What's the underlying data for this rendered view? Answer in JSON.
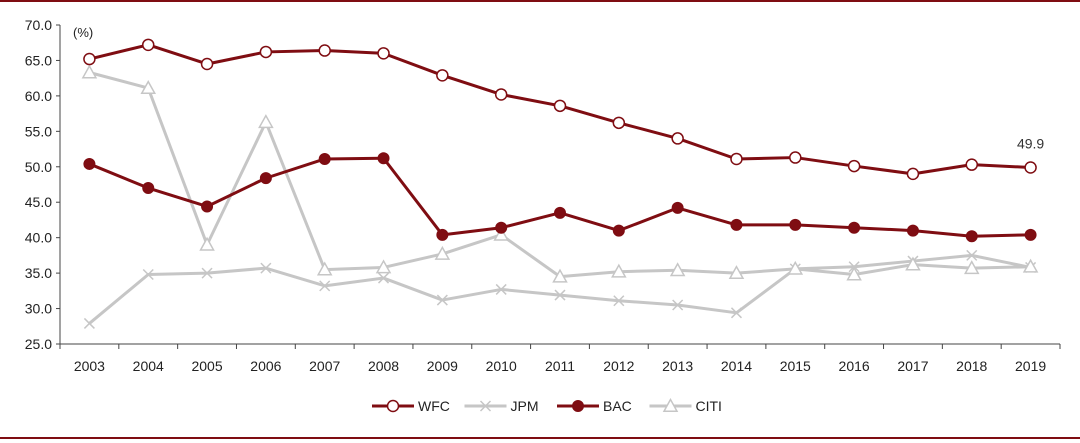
{
  "chart_data": {
    "type": "line",
    "unit_label": "(%)",
    "x": [
      "2003",
      "2004",
      "2005",
      "2006",
      "2007",
      "2008",
      "2009",
      "2010",
      "2011",
      "2012",
      "2013",
      "2014",
      "2015",
      "2016",
      "2017",
      "2018",
      "2019"
    ],
    "ylim": [
      25.0,
      70.0
    ],
    "yticks": [
      "70.0",
      "65.0",
      "60.0",
      "55.0",
      "50.0",
      "45.0",
      "40.0",
      "35.0",
      "30.0",
      "25.0"
    ],
    "grid": false,
    "legend_position": "bottom",
    "series": [
      {
        "name": "WFC",
        "color": "#7f0d12",
        "marker": "open-circle",
        "values": [
          65.2,
          67.2,
          64.5,
          66.2,
          66.4,
          66.0,
          62.9,
          60.2,
          58.6,
          56.2,
          54.0,
          51.1,
          51.3,
          50.1,
          49.0,
          50.3,
          49.9
        ]
      },
      {
        "name": "JPM",
        "color": "#c6c6c6",
        "marker": "x",
        "values": [
          27.9,
          34.8,
          35.0,
          35.7,
          33.2,
          34.3,
          31.2,
          32.7,
          31.9,
          31.1,
          30.5,
          29.4,
          35.6,
          35.9,
          36.7,
          37.5,
          35.8
        ]
      },
      {
        "name": "BAC",
        "color": "#7f0d12",
        "marker": "filled-circle",
        "values": [
          50.4,
          47.0,
          44.4,
          48.4,
          51.1,
          51.2,
          40.4,
          41.4,
          43.5,
          41.0,
          44.2,
          41.8,
          41.8,
          41.4,
          41.0,
          40.2,
          40.4
        ]
      },
      {
        "name": "CITI",
        "color": "#c6c6c6",
        "marker": "open-triangle",
        "values": [
          63.3,
          61.1,
          39.0,
          56.3,
          35.5,
          35.8,
          37.7,
          40.4,
          34.5,
          35.2,
          35.4,
          35.0,
          35.6,
          34.8,
          36.2,
          35.7,
          35.9
        ]
      }
    ],
    "annotations": [
      {
        "series": "WFC",
        "x": "2019",
        "text": "49.9"
      }
    ]
  }
}
